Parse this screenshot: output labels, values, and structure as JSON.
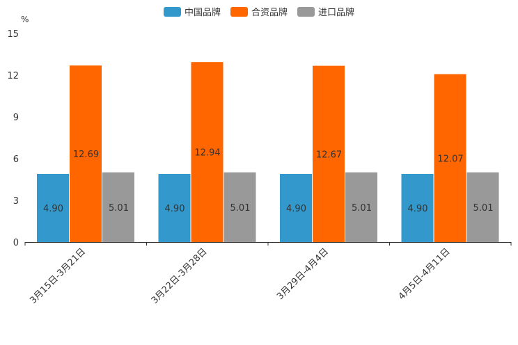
{
  "chart_data": {
    "type": "bar",
    "unit": "%",
    "categories": [
      "3月15日-3月21日",
      "3月22日-3月28日",
      "3月29日-4月4日",
      "4月5日-4月11日"
    ],
    "series": [
      {
        "name": "中国品牌",
        "color": "#3399cc",
        "values": [
          4.9,
          4.9,
          4.9,
          4.9
        ]
      },
      {
        "name": "合资品牌",
        "color": "#ff6600",
        "values": [
          12.69,
          12.94,
          12.67,
          12.07
        ]
      },
      {
        "name": "进口品牌",
        "color": "#999999",
        "values": [
          5.01,
          5.01,
          5.01,
          5.01
        ]
      }
    ],
    "ylim": [
      0,
      15
    ],
    "yticks": [
      "0",
      "3",
      "6",
      "9",
      "12",
      "15"
    ],
    "value_labels": [
      [
        "4.90",
        "4.90",
        "4.90",
        "4.90"
      ],
      [
        "12.69",
        "12.94",
        "12.67",
        "12.07"
      ],
      [
        "5.01",
        "5.01",
        "5.01",
        "5.01"
      ]
    ],
    "legend_position": "top-center"
  }
}
